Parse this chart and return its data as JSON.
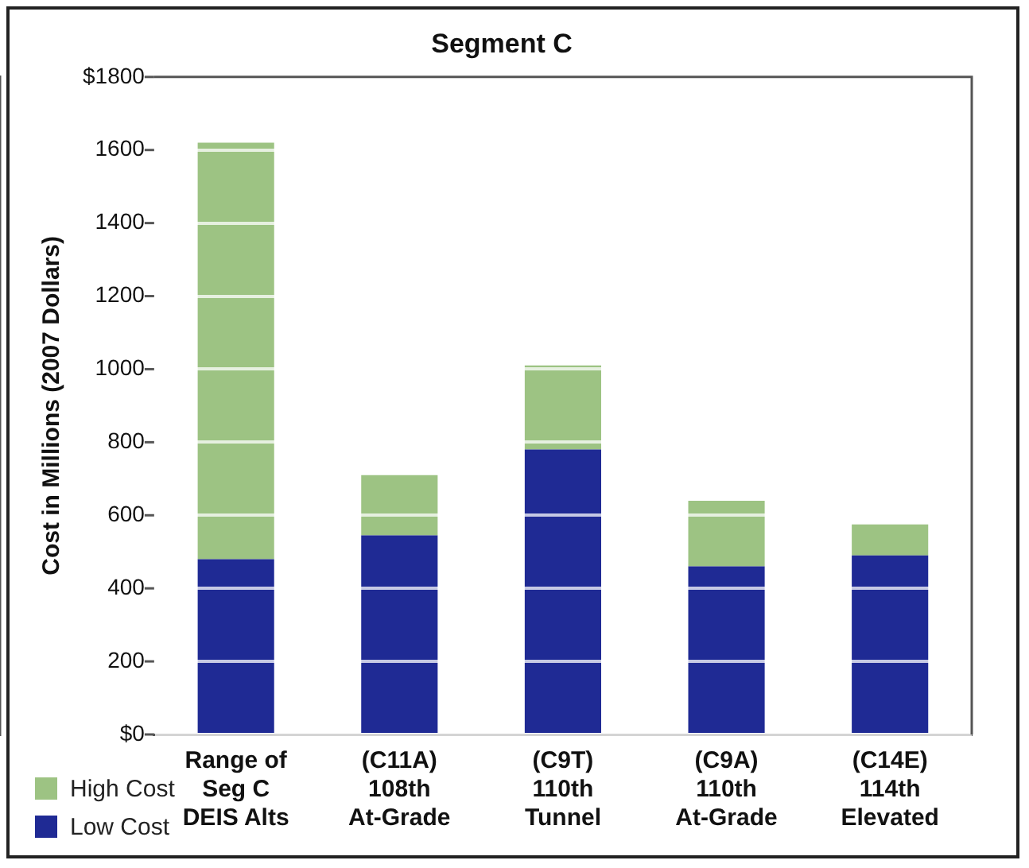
{
  "chart_data": {
    "type": "bar",
    "title": "Segment C",
    "ylabel": "Cost in Millions (2007 Dollars)",
    "categories": [
      "Range of\nSeg C\nDEIS Alts",
      "(C11A)\n108th\nAt-Grade",
      "(C9T)\n110th\nTunnel",
      "(C9A)\n110th\nAt-Grade",
      "(C14E)\n114th\nElevated"
    ],
    "stacked": true,
    "series": [
      {
        "name": "Low Cost",
        "color": "#1f2a94",
        "values": [
          480,
          545,
          780,
          460,
          490
        ]
      },
      {
        "name": "High Cost",
        "color": "#9dc383",
        "values": [
          1140,
          165,
          230,
          180,
          85
        ]
      }
    ],
    "ylim": [
      0,
      1800
    ],
    "yticks": [
      {
        "value": 0,
        "label": "$0"
      },
      200,
      400,
      600,
      800,
      1000,
      1200,
      1400,
      1600,
      {
        "value": 1800,
        "label": "$1800"
      }
    ],
    "grid": "y",
    "legend": "bottom left"
  }
}
